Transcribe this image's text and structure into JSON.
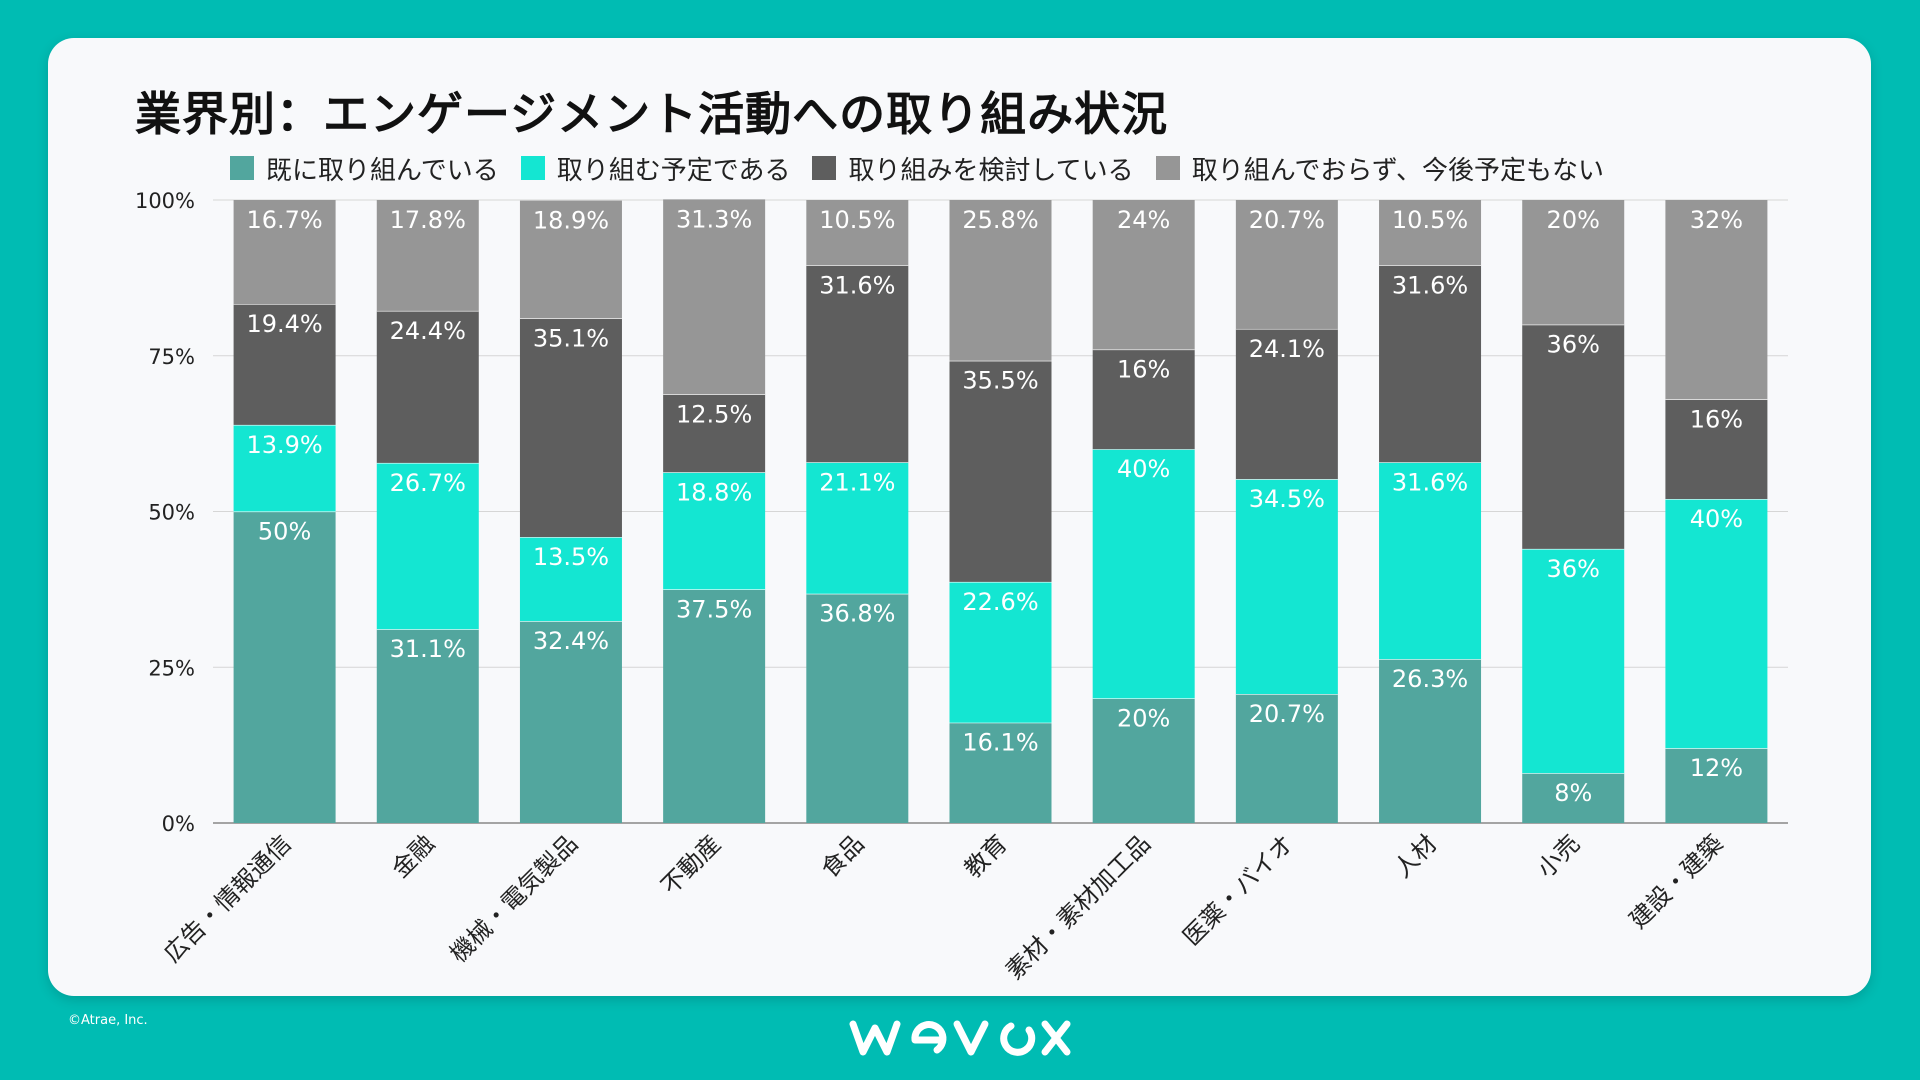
{
  "title": "業界別：エンゲージメント活動への取り組み状況",
  "legend": [
    {
      "label": "既に取り組んでいる",
      "color": "#52a69e"
    },
    {
      "label": "取り組む予定である",
      "color": "#14e6d2"
    },
    {
      "label": "取り組みを検討している",
      "color": "#5e5e5e"
    },
    {
      "label": "取り組んでおらず、今後予定もない",
      "color": "#969696"
    }
  ],
  "chart_data": {
    "type": "bar",
    "stacked": true,
    "categories": [
      "広告・情報通信",
      "金融",
      "機械・電気製品",
      "不動産",
      "食品",
      "教育",
      "素材・素材加工品",
      "医薬・バイオ",
      "人材",
      "小売",
      "建設・建築"
    ],
    "series": [
      {
        "name": "既に取り組んでいる",
        "color": "#52a69e",
        "values": [
          50,
          31.1,
          32.4,
          37.5,
          36.8,
          16.1,
          20,
          20.7,
          26.3,
          8,
          12
        ]
      },
      {
        "name": "取り組む予定である",
        "color": "#14e6d2",
        "values": [
          13.9,
          26.7,
          13.5,
          18.8,
          21.1,
          22.6,
          40,
          34.5,
          31.6,
          36,
          40
        ]
      },
      {
        "name": "取り組みを検討している",
        "color": "#5e5e5e",
        "values": [
          19.4,
          24.4,
          35.1,
          12.5,
          31.6,
          35.5,
          16,
          24.1,
          31.6,
          36,
          16
        ]
      },
      {
        "name": "取り組んでおらず、今後予定もない",
        "color": "#969696",
        "values": [
          16.7,
          17.8,
          18.9,
          31.3,
          10.5,
          25.8,
          24,
          20.7,
          10.5,
          20,
          32
        ]
      }
    ],
    "yticks": [
      "0%",
      "25%",
      "50%",
      "75%",
      "100%"
    ],
    "ylim": [
      0,
      100
    ],
    "grid": true,
    "legend_position": "top"
  },
  "footer": {
    "copyright": "©Atrae, Inc.",
    "logo_text": "wevox"
  }
}
